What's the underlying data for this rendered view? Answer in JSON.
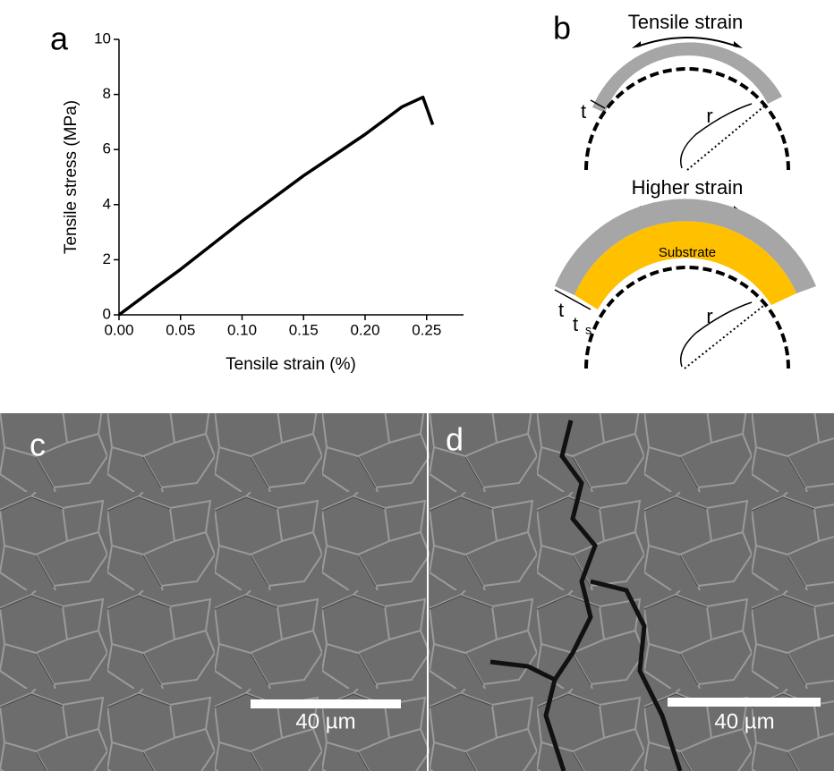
{
  "chart_data": {
    "type": "line",
    "panel_label": "a",
    "x_label": "Tensile strain (%)",
    "y_label": "Tensile stress (MPa)",
    "x": [
      0,
      0.03,
      0.05,
      0.1,
      0.15,
      0.18,
      0.2,
      0.23,
      0.247,
      0.255
    ],
    "series": [
      {
        "color": "#000000",
        "values": [
          0,
          1.0,
          1.65,
          3.4,
          5.05,
          5.95,
          6.55,
          7.55,
          7.9,
          6.9
        ]
      }
    ],
    "xlim": [
      0,
      0.28
    ],
    "ylim": [
      0,
      10
    ],
    "xticks": [
      {
        "value": 0,
        "label": "0.00"
      },
      {
        "value": 0.05,
        "label": "0.05"
      },
      {
        "value": 0.1,
        "label": "0.10"
      },
      {
        "value": 0.15,
        "label": "0.15"
      },
      {
        "value": 0.2,
        "label": "0.20"
      },
      {
        "value": 0.25,
        "label": "0.25"
      }
    ],
    "yticks": [
      0,
      2,
      4,
      6,
      8,
      10
    ]
  },
  "panel_b": {
    "label": "b",
    "top": {
      "title": "Tensile strain",
      "thickness": "t",
      "radius": "r"
    },
    "bottom": {
      "title": "Higher strain",
      "substrate": "Substrate",
      "thickness": "t",
      "substrate_thickness": "t",
      "substrate_subscript": "s",
      "radius": "r"
    }
  },
  "panel_c": {
    "label": "c",
    "scale_bar": "40 µm"
  },
  "panel_d": {
    "label": "d",
    "scale_bar": "40 µm"
  }
}
